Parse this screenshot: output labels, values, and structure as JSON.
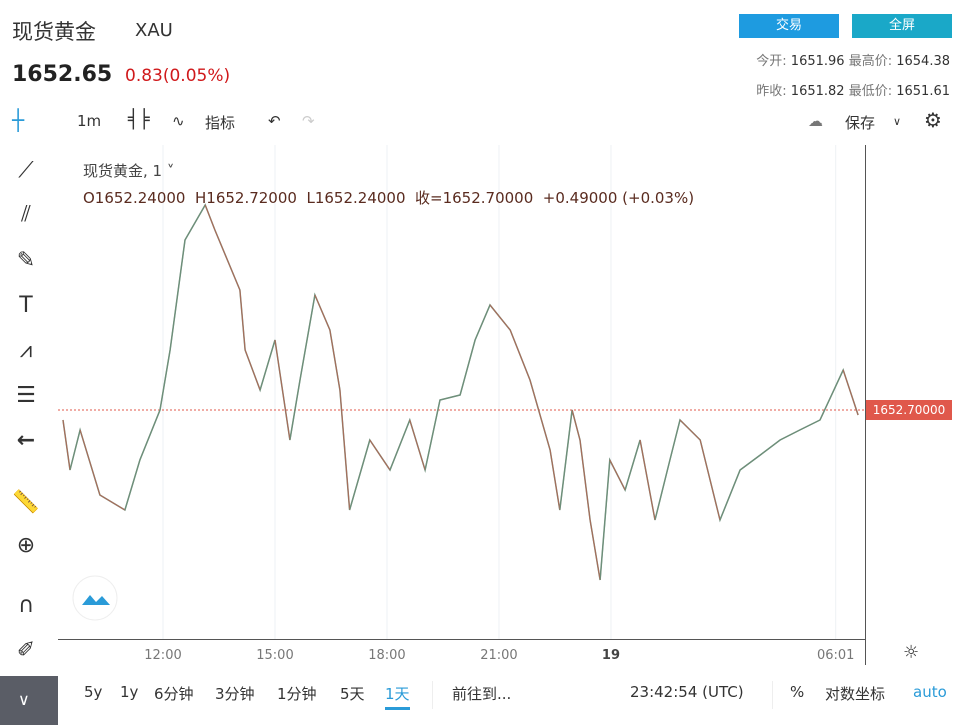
{
  "header": {
    "title": "现货黄金",
    "symbol": "XAU",
    "price": "1652.65",
    "change": "0.83(0.05%)",
    "trade_button": "交易",
    "fullscreen_button": "全屏",
    "open_label": "今开:",
    "open": "1651.96",
    "high_label": "最高价:",
    "high": "1654.38",
    "prev_close_label": "昨收:",
    "prev_close": "1651.82",
    "low_label": "最低价:",
    "low": "1651.61"
  },
  "toolbar": {
    "interval": "1m",
    "indicators": "指标",
    "save": "保存"
  },
  "legend": {
    "name": "现货黄金, 1",
    "ohlc": "O1652.24000  H1652.72000  L1652.24000  收=1652.70000  +0.49000 (+0.03%)"
  },
  "bottom": {
    "ranges": [
      "5y",
      "1y",
      "6分钟",
      "3分钟",
      "1分钟",
      "5天",
      "1天"
    ],
    "active_range": "1天",
    "goto": "前往到...",
    "clock": "23:42:54 (UTC)",
    "percent": "%",
    "log": "对数坐标",
    "auto": "auto"
  },
  "chart_data": {
    "type": "line",
    "title": "现货黄金, 1",
    "x_ticks": [
      {
        "label": "12:00",
        "h": 12
      },
      {
        "label": "15:00",
        "h": 15
      },
      {
        "label": "18:00",
        "h": 18
      },
      {
        "label": "21:00",
        "h": 21
      },
      {
        "label": "19",
        "h": 24
      },
      {
        "label": "06:01",
        "h": 30.02
      }
    ],
    "last_price_label": "1652.70000",
    "last_price": 1652.7,
    "x_hours": [
      9.32,
      9.51,
      9.78,
      10.31,
      10.98,
      11.38,
      11.92,
      12.19,
      12.59,
      13.13,
      13.39,
      14.06,
      14.2,
      14.6,
      15.0,
      15.4,
      15.67,
      16.07,
      16.47,
      16.74,
      17.0,
      17.54,
      18.08,
      18.61,
      19.02,
      19.42,
      19.96,
      20.36,
      20.76,
      21.3,
      21.83,
      22.37,
      22.63,
      22.96,
      23.17,
      23.44,
      23.71,
      23.97,
      24.38,
      24.78,
      25.18,
      25.58,
      25.85,
      26.39,
      26.92,
      27.46,
      28.0,
      28.53,
      29.06,
      29.6,
      30.22,
      30.62
    ],
    "values": [
      1652.62,
      1652.22,
      1652.54,
      1652.02,
      1651.9,
      1652.3,
      1652.7,
      1653.18,
      1654.06,
      1654.34,
      1654.14,
      1653.66,
      1653.18,
      1652.86,
      1653.26,
      1652.46,
      1652.94,
      1653.62,
      1653.34,
      1652.86,
      1651.9,
      1652.46,
      1652.22,
      1652.62,
      1652.22,
      1652.78,
      1652.82,
      1653.26,
      1653.54,
      1653.34,
      1652.94,
      1652.38,
      1651.9,
      1652.7,
      1652.46,
      1651.82,
      1651.34,
      1652.3,
      1652.06,
      1652.46,
      1651.82,
      1652.3,
      1652.62,
      1652.46,
      1651.82,
      1652.22,
      1652.34,
      1652.46,
      1652.54,
      1652.62,
      1653.02,
      1652.66
    ],
    "colors": {
      "line": "#6e8f7a",
      "down": "#c0604f",
      "price_line": "#e0584b"
    }
  }
}
